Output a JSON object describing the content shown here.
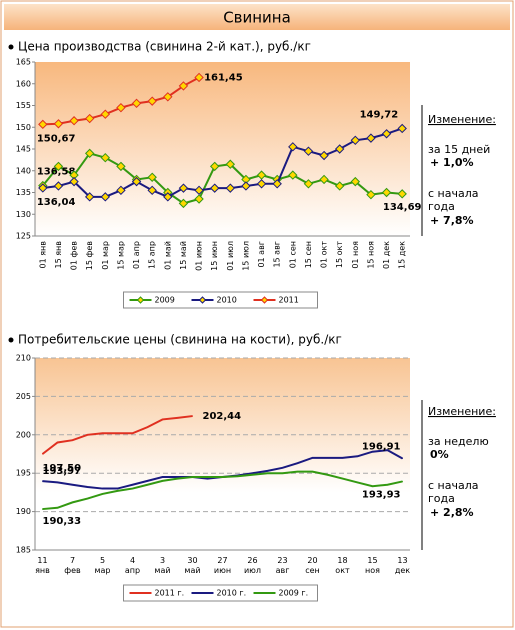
{
  "header": {
    "title": "Свинина"
  },
  "chart_data": [
    {
      "type": "line",
      "title": "Цена производства (свинина 2-й кат.), руб./кг",
      "categories": [
        "01 янв",
        "15 янв",
        "01 фев",
        "15 фев",
        "01 мар",
        "15 мар",
        "01 апр",
        "15 апр",
        "01 май",
        "15 май",
        "01 июн",
        "15 июн",
        "01 июл",
        "15 июл",
        "01 авг",
        "15 авг",
        "01 сен",
        "15 сен",
        "01 окт",
        "15 окт",
        "01 ноя",
        "15 ноя",
        "01 дек",
        "15 дек"
      ],
      "ylim": [
        125,
        165
      ],
      "yticks": [
        125,
        130,
        135,
        140,
        145,
        150,
        155,
        160,
        165
      ],
      "grid": false,
      "marker": "diamond",
      "marker_color": "#ffd700",
      "series": [
        {
          "name": "2009",
          "color": "#339911",
          "values": [
            136.58,
            141,
            139,
            144,
            143,
            141,
            138,
            138.5,
            135,
            132.5,
            133.5,
            141,
            141.5,
            138,
            139,
            138,
            139,
            137,
            138,
            136.5,
            137.5,
            134.5,
            135,
            134.69
          ],
          "value_labels": [
            "136,58",
            null,
            null,
            null,
            null,
            null,
            null,
            null,
            null,
            null,
            null,
            null,
            null,
            null,
            null,
            null,
            null,
            null,
            null,
            null,
            null,
            null,
            null,
            "134,69"
          ]
        },
        {
          "name": "2010",
          "color": "#1a1a80",
          "values": [
            136.04,
            136.5,
            137.5,
            134,
            134,
            135.5,
            137.5,
            135.5,
            134,
            136,
            135.5,
            136,
            136,
            136.5,
            137,
            137,
            145.5,
            144.5,
            143.5,
            145,
            147,
            147.5,
            148.5,
            149.72
          ],
          "value_labels": [
            "136,04",
            null,
            null,
            null,
            null,
            null,
            null,
            null,
            null,
            null,
            null,
            null,
            null,
            null,
            null,
            null,
            null,
            null,
            null,
            null,
            null,
            null,
            null,
            "149,72"
          ]
        },
        {
          "name": "2011",
          "color": "#e03020",
          "values": [
            150.67,
            150.8,
            151.5,
            152,
            153,
            154.5,
            155.5,
            156,
            157,
            159.5,
            161.45,
            null,
            null,
            null,
            null,
            null,
            null,
            null,
            null,
            null,
            null,
            null,
            null,
            null
          ],
          "value_labels": [
            "150,67",
            null,
            null,
            null,
            null,
            null,
            null,
            null,
            null,
            null,
            "161,45",
            null,
            null,
            null,
            null,
            null,
            null,
            null,
            null,
            null,
            null,
            null,
            null,
            null
          ]
        }
      ],
      "notes": [
        "Изменение:",
        "за 15 дней",
        "+ 1,0%",
        "с начала",
        "года",
        "+ 7,8%"
      ]
    },
    {
      "type": "line",
      "title": "Потребительские цены (свинина на кости), руб./кг",
      "categories": [
        "11 янв",
        null,
        "7 фев",
        null,
        "5 мар",
        null,
        "4 апр",
        null,
        "3 май",
        null,
        "30 май",
        null,
        "27 июн",
        null,
        "26 июл",
        null,
        "23 авг",
        null,
        "20 сен",
        null,
        "18 окт",
        null,
        "15 ноя",
        null,
        "13 дек"
      ],
      "ylim": [
        185,
        210
      ],
      "yticks": [
        185,
        190,
        195,
        200,
        205,
        210
      ],
      "grid": true,
      "series": [
        {
          "name": "2011 г.",
          "color": "#e03020",
          "values": [
            197.5,
            199,
            199.3,
            200,
            200.2,
            200.2,
            200.2,
            201,
            202,
            202.2,
            202.44,
            null,
            null,
            null,
            null,
            null,
            null,
            null,
            null,
            null,
            null,
            null,
            null,
            null,
            null
          ],
          "value_labels": [
            "197,50",
            null,
            null,
            null,
            null,
            null,
            null,
            null,
            null,
            null,
            "202,44",
            null,
            null,
            null,
            null,
            null,
            null,
            null,
            null,
            null,
            null,
            null,
            null,
            null,
            null
          ]
        },
        {
          "name": "2010 г.",
          "color": "#1a1a80",
          "values": [
            193.97,
            193.8,
            193.5,
            193.2,
            193,
            193,
            193.5,
            194,
            194.5,
            194.5,
            194.5,
            194.3,
            194.5,
            194.7,
            195,
            195.3,
            195.7,
            196.3,
            197,
            197,
            197,
            197.2,
            197.8,
            198,
            196.91
          ],
          "value_labels": [
            "193,97",
            null,
            null,
            null,
            null,
            null,
            null,
            null,
            null,
            null,
            null,
            null,
            null,
            null,
            null,
            null,
            null,
            null,
            null,
            null,
            null,
            null,
            null,
            null,
            "196,91"
          ]
        },
        {
          "name": "2009 г.",
          "color": "#339911",
          "values": [
            190.33,
            190.5,
            191.2,
            191.7,
            192.3,
            192.7,
            193,
            193.5,
            194,
            194.3,
            194.5,
            194.5,
            194.5,
            194.6,
            194.8,
            195,
            195,
            195.2,
            195.2,
            194.8,
            194.3,
            193.8,
            193.3,
            193.5,
            193.93
          ],
          "value_labels": [
            "190,33",
            null,
            null,
            null,
            null,
            null,
            null,
            null,
            null,
            null,
            null,
            null,
            null,
            null,
            null,
            null,
            null,
            null,
            null,
            null,
            null,
            null,
            null,
            null,
            "193,93"
          ]
        }
      ],
      "notes": [
        "Изменение:",
        "за неделю",
        "0%",
        "с начала",
        "года",
        "+ 2,8%"
      ]
    }
  ]
}
